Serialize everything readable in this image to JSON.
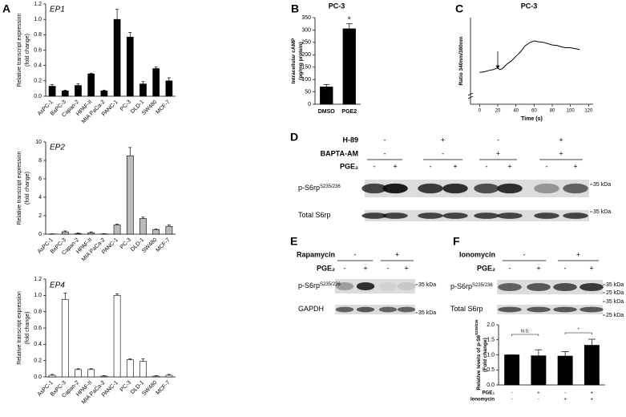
{
  "panel_letters": [
    "A",
    "B",
    "C",
    "D",
    "E",
    "F"
  ],
  "chart_data": [
    {
      "type": "bar",
      "label": "EP1",
      "ylabel": [
        "Relative transcript expression",
        "(fold change)"
      ],
      "categories": [
        "AsPC-1",
        "BxPC-3",
        "Capan-2",
        "HPAF-II",
        "MIA PaCa-2",
        "PANC-1",
        "PC-3",
        "DLD-1",
        "SW480",
        "MCF-7"
      ],
      "values": [
        0.13,
        0.07,
        0.14,
        0.29,
        0.07,
        1.0,
        0.77,
        0.16,
        0.36,
        0.2
      ],
      "errors": [
        0.02,
        0.01,
        0.02,
        0.01,
        0.01,
        0.13,
        0.06,
        0.03,
        0.02,
        0.04
      ],
      "color": "#000000",
      "ylim": [
        0,
        1.2
      ],
      "yticks": [
        {
          "value": 0,
          "label": "0.0"
        },
        0.2,
        0.4,
        0.6,
        0.8,
        {
          "value": 1,
          "label": "1.0"
        },
        1.2
      ]
    },
    {
      "type": "bar",
      "label": "EP2",
      "ylabel": [
        "Relative transcript expression",
        "(fold change)"
      ],
      "categories": [
        "AsPC-1",
        "BxPC-3",
        "Capan-2",
        "HPAF-II",
        "MIA PaCa-2",
        "PANC-1",
        "PC-3",
        "DLD-1",
        "SW480",
        "MCF-7"
      ],
      "values": [
        0.02,
        0.25,
        0.07,
        0.15,
        0.03,
        1.0,
        8.5,
        1.7,
        0.5,
        0.85
      ],
      "errors": [
        0.02,
        0.1,
        0.05,
        0.1,
        0.02,
        0.08,
        0.9,
        0.15,
        0.05,
        0.15
      ],
      "color": "#bbbbbb",
      "ylim": [
        0,
        10
      ],
      "yticks": [
        0,
        2,
        4,
        6,
        8,
        10
      ]
    },
    {
      "type": "bar",
      "label": "EP4",
      "ylabel": [
        "Relative transcript expression",
        "(fold change)"
      ],
      "categories": [
        "AsPC-1",
        "BxPC-3",
        "Capan-2",
        "HPAF-II",
        "MIA PaCa-2",
        "PANC-1",
        "PC-3",
        "DLD-1",
        "SW480",
        "MCF-7"
      ],
      "values": [
        0.02,
        0.95,
        0.09,
        0.09,
        0.01,
        1.0,
        0.21,
        0.19,
        0.01,
        0.02
      ],
      "errors": [
        0.01,
        0.08,
        0.01,
        0.01,
        0.005,
        0.02,
        0.01,
        0.03,
        0.005,
        0.01
      ],
      "color": "#ffffff",
      "ylim": [
        0,
        1.2
      ],
      "yticks": [
        {
          "value": 0,
          "label": "0.0"
        },
        0.2,
        0.4,
        0.6,
        0.8,
        {
          "value": 1,
          "label": "1.0"
        },
        1.2
      ]
    },
    {
      "type": "bar",
      "title": "PC-3",
      "ylabel": [
        "Intracellular cAMP",
        "(pg/mg protein)"
      ],
      "categories": [
        "DMSO",
        "PGE2"
      ],
      "values": [
        70,
        305
      ],
      "errors": [
        10,
        20
      ],
      "annotations": [
        "*"
      ],
      "color": "#000000",
      "ylim": [
        0,
        350
      ],
      "yticks": [
        0,
        50,
        100,
        150,
        200,
        250,
        300,
        350
      ]
    },
    {
      "type": "line",
      "title": "PC-3",
      "xlabel": "Time (s)",
      "ylabel": [
        "Ratio 340nm/380nm"
      ],
      "x": [
        0,
        5,
        10,
        15,
        20,
        22,
        25,
        30,
        35,
        40,
        45,
        50,
        55,
        60,
        65,
        70,
        75,
        80,
        85,
        90,
        95,
        100,
        105,
        110
      ],
      "values": [
        1.7,
        1.71,
        1.74,
        1.76,
        1.8,
        1.76,
        1.78,
        1.88,
        1.95,
        2.05,
        2.15,
        2.28,
        2.35,
        2.39,
        2.37,
        2.36,
        2.33,
        2.3,
        2.29,
        2.26,
        2.24,
        2.24,
        2.22,
        2.2
      ],
      "color": "#000000",
      "xlim": [
        -10,
        125
      ],
      "ylim": [
        1.0,
        2.9
      ],
      "xticks": [
        0,
        20,
        40,
        60,
        80,
        100,
        120
      ]
    },
    {
      "type": "bar",
      "ylabel": [
        "Relative levels of p-S6",
        "(Fold change)"
      ],
      "ylabel_sup": "S235/236",
      "condition_rows": [
        {
          "name": "PGE₂",
          "signs": [
            "-",
            "+",
            "-",
            "+"
          ]
        },
        {
          "name": "Ionomycin",
          "signs": [
            "-",
            "-",
            "+",
            "+"
          ]
        }
      ],
      "values": [
        1.0,
        0.97,
        0.96,
        1.32
      ],
      "errors": [
        0,
        0.2,
        0.15,
        0.2
      ],
      "annotations": [
        "N.S.",
        "*"
      ],
      "color": "#000000",
      "ylim": [
        0,
        2.0
      ],
      "yticks": [
        {
          "value": 0,
          "label": "0.0"
        },
        0.5,
        {
          "value": 1,
          "label": "1.0"
        },
        1.5,
        {
          "value": 2,
          "label": "2.0"
        }
      ]
    }
  ],
  "blots": [
    {
      "treatments": [
        {
          "name": "H-89",
          "signs": [
            "-",
            "+",
            "-",
            "+"
          ]
        },
        {
          "name": "BAPTA-AM",
          "signs": [
            "-",
            "-",
            "+",
            "+"
          ]
        },
        {
          "name": "PGE₂",
          "signs": [
            "-",
            "+",
            "-",
            "+",
            "-",
            "+",
            "-",
            "+"
          ]
        }
      ],
      "rows": [
        {
          "label": "p-S6rp",
          "sup": "S235/236"
        },
        {
          "label": "Total S6rp"
        }
      ],
      "markers": [
        "35 kDa",
        "35 kDa"
      ]
    },
    {
      "treatments": [
        {
          "name": "Rapamycin",
          "signs": [
            "-",
            "+"
          ]
        },
        {
          "name": "PGE₂",
          "signs": [
            "-",
            "+",
            "-",
            "+"
          ]
        }
      ],
      "rows": [
        {
          "label": "p-S6rp",
          "sup": "S235/236"
        },
        {
          "label": "GAPDH"
        }
      ],
      "markers": [
        "35 kDa",
        "35 kDa"
      ]
    },
    {
      "treatments": [
        {
          "name": "Ionomycin",
          "signs": [
            "-",
            "+"
          ]
        },
        {
          "name": "PGE₂",
          "signs": [
            "-",
            "+",
            "-",
            "+"
          ]
        }
      ],
      "rows": [
        {
          "label": "p-S6rp",
          "sup": "S235/236"
        },
        {
          "label": "Total S6rp"
        }
      ],
      "markers": [
        "35 kDa",
        "25 kDa",
        "35 kDa",
        "25 kDa"
      ]
    }
  ]
}
